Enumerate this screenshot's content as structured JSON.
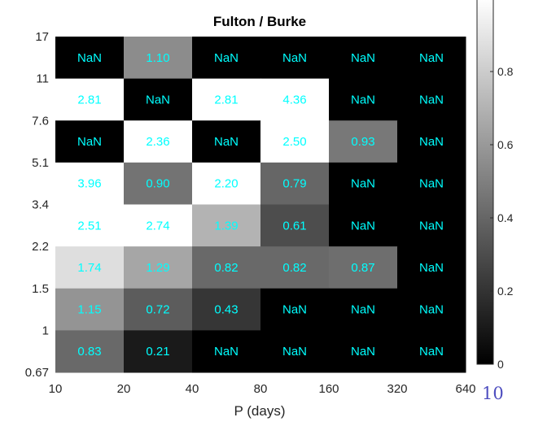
{
  "chart_data": {
    "type": "heatmap",
    "title": "Fulton / Burke",
    "xlabel": "P (days)",
    "ylabel": "",
    "x_ticks": [
      "10",
      "20",
      "40",
      "80",
      "160",
      "320",
      "640"
    ],
    "y_ticks": [
      "0.67",
      "1",
      "1.5",
      "2.2",
      "3.4",
      "5.1",
      "7.6",
      "11",
      "17"
    ],
    "rows_top_to_bottom": [
      {
        "labels": [
          "NaN",
          "1.10",
          "NaN",
          "NaN",
          "NaN",
          "NaN"
        ],
        "values": [
          null,
          0.55,
          null,
          null,
          null,
          null
        ]
      },
      {
        "labels": [
          "2.81",
          "NaN",
          "2.81",
          "4.36",
          "NaN",
          "NaN"
        ],
        "values": [
          1.0,
          null,
          1.0,
          1.0,
          null,
          null
        ]
      },
      {
        "labels": [
          "NaN",
          "2.36",
          "NaN",
          "2.50",
          "0.93",
          "NaN"
        ],
        "values": [
          null,
          1.0,
          null,
          1.0,
          0.47,
          null
        ]
      },
      {
        "labels": [
          "3.96",
          "0.90",
          "2.20",
          "0.79",
          "NaN",
          "NaN"
        ],
        "values": [
          1.0,
          0.45,
          1.0,
          0.4,
          null,
          null
        ]
      },
      {
        "labels": [
          "2.51",
          "2.74",
          "1.39",
          "0.61",
          "NaN",
          "NaN"
        ],
        "values": [
          1.0,
          1.0,
          0.7,
          0.3,
          null,
          null
        ]
      },
      {
        "labels": [
          "1.74",
          "1.29",
          "0.82",
          "0.82",
          "0.87",
          "NaN"
        ],
        "values": [
          0.87,
          0.65,
          0.41,
          0.41,
          0.43,
          null
        ]
      },
      {
        "labels": [
          "1.15",
          "0.72",
          "0.43",
          "NaN",
          "NaN",
          "NaN"
        ],
        "values": [
          0.58,
          0.36,
          0.21,
          null,
          null,
          null
        ]
      },
      {
        "labels": [
          "0.83",
          "0.21",
          "NaN",
          "NaN",
          "NaN",
          "NaN"
        ],
        "values": [
          0.41,
          0.1,
          null,
          null,
          null,
          null
        ]
      }
    ],
    "colorbar": {
      "ticks": [
        "0",
        "0.2",
        "0.4",
        "0.6",
        "0.8"
      ],
      "tick_values": [
        0,
        0.2,
        0.4,
        0.6,
        0.8
      ],
      "range": [
        0,
        1
      ],
      "colormap": "gray"
    },
    "x_exponent_label": "10",
    "label_color": "#00ffff"
  }
}
